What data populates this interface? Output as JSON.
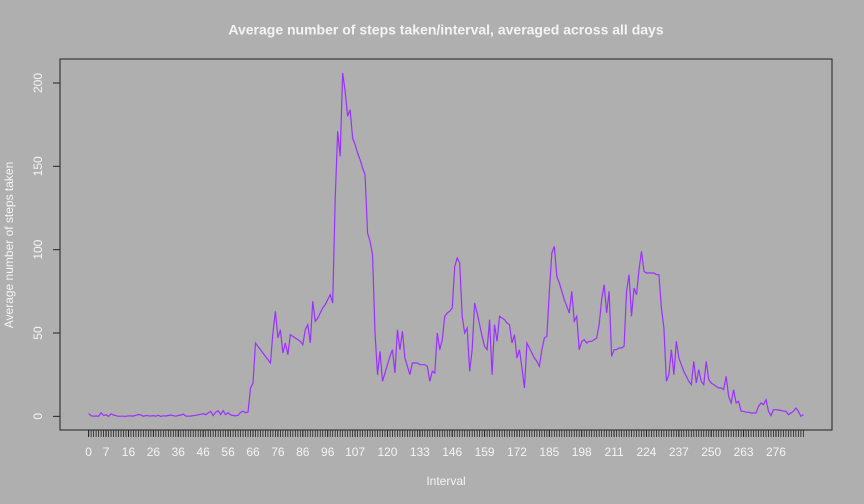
{
  "chart_data": {
    "type": "line",
    "title": "Average number of steps taken/interval, averaged across all days",
    "x_label": "Interval",
    "y_label": "Average number of steps taken",
    "x": [
      0,
      1,
      2,
      3,
      4,
      5,
      6,
      7,
      8,
      9,
      10,
      11,
      12,
      13,
      14,
      15,
      16,
      17,
      18,
      19,
      20,
      21,
      22,
      23,
      24,
      25,
      26,
      27,
      28,
      29,
      30,
      31,
      32,
      33,
      34,
      35,
      36,
      37,
      38,
      39,
      40,
      41,
      42,
      43,
      44,
      45,
      46,
      47,
      48,
      49,
      50,
      51,
      52,
      53,
      54,
      55,
      56,
      57,
      58,
      59,
      60,
      61,
      62,
      63,
      64,
      65,
      66,
      67,
      68,
      69,
      70,
      71,
      72,
      73,
      74,
      75,
      76,
      77,
      78,
      79,
      80,
      81,
      82,
      83,
      84,
      85,
      86,
      87,
      88,
      89,
      90,
      91,
      92,
      93,
      94,
      95,
      96,
      97,
      98,
      99,
      100,
      101,
      102,
      103,
      104,
      105,
      106,
      107,
      108,
      109,
      110,
      111,
      112,
      113,
      114,
      115,
      116,
      117,
      118,
      119,
      120,
      121,
      122,
      123,
      124,
      125,
      126,
      127,
      128,
      129,
      130,
      131,
      132,
      133,
      134,
      135,
      136,
      137,
      138,
      139,
      140,
      141,
      142,
      143,
      144,
      145,
      146,
      147,
      148,
      149,
      150,
      151,
      152,
      153,
      154,
      155,
      156,
      157,
      158,
      159,
      160,
      161,
      162,
      163,
      164,
      165,
      166,
      167,
      168,
      169,
      170,
      171,
      172,
      173,
      174,
      175,
      176,
      177,
      178,
      179,
      180,
      181,
      182,
      183,
      184,
      185,
      186,
      187,
      188,
      189,
      190,
      191,
      192,
      193,
      194,
      195,
      196,
      197,
      198,
      199,
      200,
      201,
      202,
      203,
      204,
      205,
      206,
      207,
      208,
      209,
      210,
      211,
      212,
      213,
      214,
      215,
      216,
      217,
      218,
      219,
      220,
      221,
      222,
      223,
      224,
      225,
      226,
      227,
      228,
      229,
      230,
      231,
      232,
      233,
      234,
      235,
      236,
      237,
      238,
      239,
      240,
      241,
      242,
      243,
      244,
      245,
      246,
      247,
      248,
      249,
      250,
      251,
      252,
      253,
      254,
      255,
      256,
      257,
      258,
      259,
      260,
      261,
      262,
      263,
      264,
      265,
      266,
      267,
      268,
      269,
      270,
      271,
      272,
      273,
      274,
      275,
      276,
      277,
      278,
      279,
      280,
      281,
      282,
      283,
      284,
      285,
      286,
      287
    ],
    "series": [
      {
        "name": "steps",
        "color": "#9b30ff",
        "values": [
          1.7,
          0.3,
          0.1,
          0.2,
          0.1,
          2.1,
          0.5,
          0.9,
          0,
          1.5,
          0.8,
          0.4,
          0,
          0.1,
          0.1,
          0,
          0.3,
          0.2,
          0.2,
          0.6,
          1.1,
          0.8,
          0,
          0.5,
          0.3,
          0.2,
          0.4,
          0.1,
          0.6,
          0,
          0.3,
          0.2,
          0.5,
          0.8,
          0.4,
          0.1,
          0.5,
          0.8,
          1.3,
          0.2,
          0.1,
          0.2,
          0.4,
          0.6,
          0.9,
          1.2,
          1.6,
          1.0,
          2.0,
          3.0,
          0.5,
          2.5,
          3.3,
          1.1,
          3.4,
          1.0,
          2.2,
          0.8,
          0.5,
          0.3,
          0.6,
          2.4,
          3.1,
          2.2,
          2.6,
          17,
          20,
          44,
          42,
          40,
          38,
          36,
          34,
          32,
          50,
          63,
          47,
          52,
          38,
          44,
          37,
          49,
          48,
          47,
          46,
          45,
          43,
          52,
          55,
          44,
          69,
          57,
          59,
          62,
          65,
          67,
          70,
          73,
          68,
          130,
          171,
          156,
          206,
          195,
          180,
          184,
          167,
          163,
          158,
          154,
          149,
          145,
          110,
          105,
          97,
          50,
          25,
          39,
          21,
          26,
          31,
          36,
          40,
          26,
          52,
          40,
          51,
          35,
          30,
          25,
          32,
          32,
          32,
          31,
          31,
          31,
          30,
          21,
          27,
          26,
          50,
          40,
          46,
          60,
          62,
          63,
          65,
          90,
          95,
          92,
          60,
          50,
          53,
          27,
          40,
          68,
          62,
          55,
          48,
          42,
          40,
          58,
          25,
          55,
          45,
          60,
          59,
          58,
          56,
          55,
          44,
          49,
          35,
          40,
          29,
          17,
          44,
          41,
          38,
          35,
          33,
          30,
          40,
          47,
          48,
          75,
          98,
          102,
          84,
          80,
          75,
          70,
          66,
          62,
          75,
          57,
          60,
          40,
          45,
          46,
          44,
          45,
          45,
          46,
          47,
          55,
          70,
          79,
          62,
          75,
          36,
          40,
          40,
          41,
          41,
          42,
          75,
          85,
          60,
          77,
          73,
          88,
          99,
          87,
          86,
          86,
          86,
          86,
          85,
          85,
          65,
          53,
          21,
          25,
          40,
          25,
          45,
          35,
          31,
          27,
          24,
          21,
          19,
          33,
          20,
          28,
          21,
          19,
          33,
          22,
          20,
          19,
          18,
          17,
          17,
          16,
          24,
          12,
          8,
          16,
          8,
          9,
          3,
          3,
          2.5,
          2.5,
          2,
          2,
          2,
          6,
          8,
          7,
          10,
          3,
          0.5,
          4,
          4,
          3.8,
          3.5,
          3.2,
          3,
          1,
          2,
          3,
          5,
          3,
          0,
          1
        ]
      }
    ],
    "xlim": [
      -11.5,
      298.5
    ],
    "xticks": [
      0,
      7,
      16,
      26,
      36,
      46,
      56,
      66,
      76,
      86,
      96,
      107,
      120,
      133,
      146,
      159,
      172,
      185,
      198,
      211,
      224,
      237,
      250,
      263,
      276
    ],
    "ylim": [
      -8.2,
      214.4
    ],
    "yticks": [
      0,
      50,
      100,
      150,
      200
    ],
    "grid": false
  }
}
